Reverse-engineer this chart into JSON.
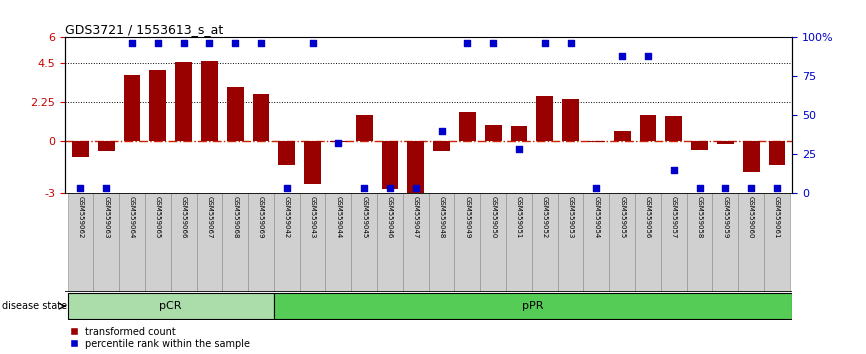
{
  "title": "GDS3721 / 1553613_s_at",
  "samples": [
    "GSM559062",
    "GSM559063",
    "GSM559064",
    "GSM559065",
    "GSM559066",
    "GSM559067",
    "GSM559068",
    "GSM559069",
    "GSM559042",
    "GSM559043",
    "GSM559044",
    "GSM559045",
    "GSM559046",
    "GSM559047",
    "GSM559048",
    "GSM559049",
    "GSM559050",
    "GSM559051",
    "GSM559052",
    "GSM559053",
    "GSM559054",
    "GSM559055",
    "GSM559056",
    "GSM559057",
    "GSM559058",
    "GSM559059",
    "GSM559060",
    "GSM559061"
  ],
  "transformed_count": [
    -0.9,
    -0.55,
    3.8,
    4.1,
    4.55,
    4.6,
    3.1,
    2.7,
    -1.4,
    -2.5,
    -0.05,
    1.5,
    -2.8,
    -3.2,
    -0.55,
    1.65,
    0.95,
    0.85,
    2.6,
    2.45,
    -0.05,
    0.55,
    1.5,
    1.45,
    -0.5,
    -0.15,
    -1.8,
    -1.4
  ],
  "percentile_rank": [
    3,
    3,
    96,
    96,
    96,
    96,
    96,
    96,
    3,
    96,
    32,
    3,
    3,
    3,
    40,
    96,
    96,
    28,
    96,
    96,
    3,
    88,
    88,
    15,
    3,
    3,
    3,
    3
  ],
  "pCR_count": 8,
  "pPR_count": 20,
  "ylim_left": [
    -3,
    6
  ],
  "ylim_right": [
    0,
    100
  ],
  "yticks_left": [
    -3,
    0,
    2.25,
    4.5,
    6
  ],
  "yticks_right": [
    0,
    25,
    50,
    75,
    100
  ],
  "bar_color": "#990000",
  "dot_color": "#0000cc",
  "zero_line_color": "#cc2200",
  "grid_line_color": "#000000",
  "pCR_color": "#aaddaa",
  "pPR_color": "#55cc55",
  "label_color_bar": "#cc0000",
  "label_color_dot": "#0000cc"
}
